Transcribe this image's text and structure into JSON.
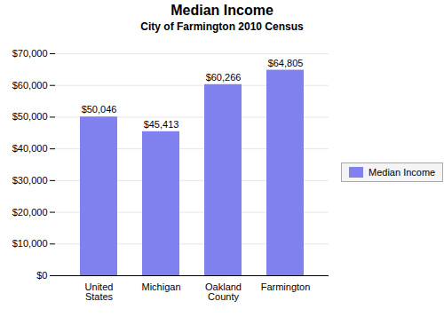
{
  "chart_data": {
    "type": "bar",
    "title": "Median Income",
    "subtitle": "City of Farmington 2010 Census",
    "categories": [
      "United\nStates",
      "Michigan",
      "Oakland\nCounty",
      "Farmington"
    ],
    "series": [
      {
        "name": "Median Income",
        "color": "#8080ee",
        "values": [
          50046,
          45413,
          60266,
          64805
        ],
        "value_labels": [
          "$50,046",
          "$45,413",
          "$60,266",
          "$64,805"
        ]
      }
    ],
    "ylim": [
      0,
      70000
    ],
    "yticks": [
      {
        "value": 0,
        "label": "$0"
      },
      {
        "value": 10000,
        "label": "$10,000"
      },
      {
        "value": 20000,
        "label": "$20,000"
      },
      {
        "value": 30000,
        "label": "$30,000"
      },
      {
        "value": 40000,
        "label": "$40,000"
      },
      {
        "value": 50000,
        "label": "$50,000"
      },
      {
        "value": 60000,
        "label": "$60,000"
      },
      {
        "value": 70000,
        "label": "$70,000"
      }
    ],
    "grid": true,
    "legend": "right",
    "data_labels": true
  }
}
